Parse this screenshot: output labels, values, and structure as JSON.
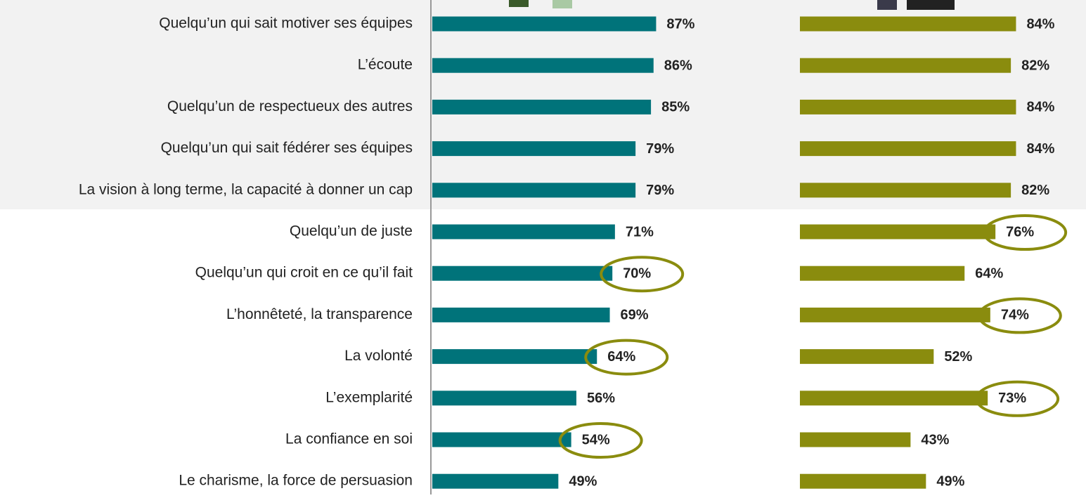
{
  "chart_data": {
    "type": "bar",
    "orientation": "horizontal",
    "categories": [
      "Quelqu’un qui sait motiver ses équipes",
      "L’écoute",
      "Quelqu’un de respectueux des autres",
      "Quelqu’un qui sait fédérer ses équipes",
      "La vision à long terme, la capacité à donner un cap",
      "Quelqu’un de juste",
      "Quelqu’un qui croit en ce qu’il fait",
      "L’honnêteté, la transparence",
      "La volonté",
      "L’exemplarité",
      "La confiance en soi",
      "Le charisme, la force de persuasion"
    ],
    "xlim": [
      0,
      100
    ],
    "series": [
      {
        "color": "#00737a",
        "values": [
          87,
          86,
          85,
          79,
          79,
          71,
          70,
          69,
          64,
          56,
          54,
          49
        ],
        "value_labels": [
          "87%",
          "86%",
          "85%",
          "79%",
          "79%",
          "71%",
          "70%",
          "69%",
          "64%",
          "56%",
          "54%",
          "49%"
        ],
        "highlighted": [
          false,
          false,
          false,
          false,
          false,
          false,
          true,
          false,
          true,
          false,
          true,
          false
        ]
      },
      {
        "color": "#8a8c0e",
        "values": [
          84,
          82,
          84,
          84,
          82,
          76,
          64,
          74,
          52,
          73,
          43,
          49
        ],
        "value_labels": [
          "84%",
          "82%",
          "84%",
          "84%",
          "82%",
          "76%",
          "64%",
          "74%",
          "52%",
          "73%",
          "43%",
          "49%"
        ],
        "highlighted": [
          false,
          false,
          false,
          false,
          false,
          true,
          false,
          true,
          false,
          true,
          false,
          false
        ]
      }
    ]
  }
}
